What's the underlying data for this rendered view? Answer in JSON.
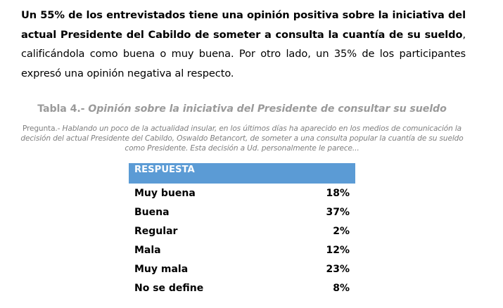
{
  "paragraph": {
    "bold_part": "Un 55% de los entrevistados tiene una opinión positiva sobre la iniciativa del actual Presidente del Cabildo de someter a consulta la cuantía de su sueldo",
    "normal_part": ", calificándola como buena o muy buena. Por otro lado, un 35% de los participantes expresó una opinión negativa al respecto."
  },
  "table_title": {
    "prefix": "Tabla 4.- ",
    "italic": "Opinión sobre la iniciativa del Presidente de consultar su sueldo"
  },
  "question": {
    "prefix": "Pregunta.- ",
    "text": "Hablando un poco de la actualidad insular, en los últimos días ha aparecido en los medios de comunicación la decisión del actual Presidente del Cabildo, Oswaldo Betancort, de someter a una consulta popular la cuantía de su sueldo como Presidente. Esta decisión a Ud. personalmente le parece..."
  },
  "table": {
    "header": "RESPUESTA",
    "header_color": "#5b9bd5",
    "rows": [
      {
        "label": "Muy buena",
        "value": "18%"
      },
      {
        "label": "Buena",
        "value": "37%"
      },
      {
        "label": "Regular",
        "value": "2%"
      },
      {
        "label": "Mala",
        "value": "12%"
      },
      {
        "label": "Muy mala",
        "value": "23%"
      },
      {
        "label": "No se define",
        "value": "8%"
      }
    ]
  }
}
